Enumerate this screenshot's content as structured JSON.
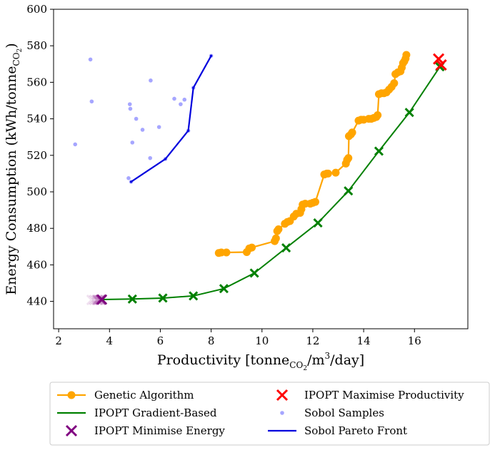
{
  "chart_data": {
    "type": "scatter",
    "xlabel": "Productivity [tonne_CO2/m^3/day]",
    "ylabel": "Energy Consumption (kWh/tonne_CO2)",
    "xlabel_parts": {
      "pre": "Productivity [tonne",
      "sub": "CO",
      "sub2": "2",
      "mid": "/m",
      "sup": "3",
      "post": "/day]"
    },
    "ylabel_parts": {
      "pre": "Energy Consumption (kWh/tonne",
      "sub": "CO",
      "sub2": "2",
      "post": ")"
    },
    "xlim": [
      1.8,
      18.1
    ],
    "ylim": [
      425,
      600
    ],
    "xticks": [
      2,
      4,
      6,
      8,
      10,
      12,
      14,
      16
    ],
    "yticks": [
      440,
      460,
      480,
      500,
      520,
      540,
      560,
      580,
      600
    ],
    "grid": false,
    "legend_position": "bottom-outside",
    "series": [
      {
        "name": "Genetic Algorithm",
        "kind": "line-marker",
        "color": "#FFA500",
        "points": [
          [
            8.3,
            466.5
          ],
          [
            8.4,
            466.8
          ],
          [
            8.6,
            466.8
          ],
          [
            9.4,
            467.0
          ],
          [
            9.5,
            469.0
          ],
          [
            9.6,
            469.5
          ],
          [
            10.5,
            473.0
          ],
          [
            10.55,
            474.5
          ],
          [
            10.6,
            478.5
          ],
          [
            10.65,
            479.5
          ],
          [
            10.9,
            482.5
          ],
          [
            11.0,
            483.5
          ],
          [
            11.1,
            484.0
          ],
          [
            11.25,
            486.5
          ],
          [
            11.35,
            488.0
          ],
          [
            11.5,
            488.5
          ],
          [
            11.55,
            490.5
          ],
          [
            11.6,
            493.0
          ],
          [
            11.7,
            493.5
          ],
          [
            11.9,
            493.5
          ],
          [
            12.0,
            494.0
          ],
          [
            12.1,
            494.5
          ],
          [
            12.45,
            509.5
          ],
          [
            12.55,
            510.0
          ],
          [
            12.6,
            510.0
          ],
          [
            12.9,
            510.5
          ],
          [
            13.3,
            515.5
          ],
          [
            13.35,
            517.5
          ],
          [
            13.4,
            518.5
          ],
          [
            13.42,
            530.5
          ],
          [
            13.5,
            531.5
          ],
          [
            13.55,
            532.5
          ],
          [
            13.8,
            539.0
          ],
          [
            13.9,
            539.5
          ],
          [
            14.0,
            539.5
          ],
          [
            14.2,
            540.0
          ],
          [
            14.3,
            540.0
          ],
          [
            14.4,
            540.5
          ],
          [
            14.5,
            541.0
          ],
          [
            14.55,
            542.0
          ],
          [
            14.6,
            553.5
          ],
          [
            14.7,
            554.0
          ],
          [
            14.8,
            554.0
          ],
          [
            14.9,
            554.5
          ],
          [
            15.0,
            556.0
          ],
          [
            15.1,
            557.5
          ],
          [
            15.2,
            559.5
          ],
          [
            15.25,
            564.5
          ],
          [
            15.35,
            565.5
          ],
          [
            15.45,
            566.0
          ],
          [
            15.5,
            568.0
          ],
          [
            15.55,
            570.5
          ],
          [
            15.6,
            571.5
          ],
          [
            15.65,
            573.0
          ],
          [
            15.68,
            575.0
          ]
        ]
      },
      {
        "name": "IPOPT Gradient-Based",
        "kind": "line-x",
        "color": "#008000",
        "points": [
          [
            3.7,
            441.0
          ],
          [
            4.9,
            441.3
          ],
          [
            6.1,
            441.8
          ],
          [
            7.3,
            443.0
          ],
          [
            8.5,
            447.0
          ],
          [
            9.7,
            455.5
          ],
          [
            10.95,
            469.3
          ],
          [
            12.2,
            483.0
          ],
          [
            13.4,
            500.5
          ],
          [
            14.6,
            522.3
          ],
          [
            15.8,
            543.5
          ],
          [
            17.0,
            568.5
          ]
        ]
      },
      {
        "name": "IPOPT Minimise Energy",
        "kind": "x",
        "color": "#800080",
        "points": [
          [
            3.3,
            440.8
          ],
          [
            3.4,
            440.8
          ],
          [
            3.5,
            440.8
          ],
          [
            3.55,
            440.8
          ],
          [
            3.65,
            440.9
          ],
          [
            3.7,
            441.0
          ]
        ],
        "alphas": [
          0.12,
          0.15,
          0.2,
          0.3,
          0.55,
          1.0
        ]
      },
      {
        "name": "IPOPT Maximise Productivity",
        "kind": "x",
        "color": "#FF0000",
        "points": [
          [
            16.95,
            572.8
          ],
          [
            17.05,
            569.5
          ]
        ]
      },
      {
        "name": "Sobol Samples",
        "kind": "dot",
        "color": "#6A6AFF",
        "points": [
          [
            2.65,
            526.0
          ],
          [
            3.25,
            572.5
          ],
          [
            3.3,
            549.5
          ],
          [
            4.75,
            507.5
          ],
          [
            4.8,
            548.0
          ],
          [
            4.82,
            545.5
          ],
          [
            4.85,
            505.5
          ],
          [
            4.9,
            527.0
          ],
          [
            5.05,
            540.0
          ],
          [
            5.3,
            534.0
          ],
          [
            5.6,
            518.5
          ],
          [
            5.62,
            561.0
          ],
          [
            5.95,
            535.5
          ],
          [
            6.2,
            518.0
          ],
          [
            6.55,
            551.0
          ],
          [
            6.8,
            548.0
          ],
          [
            6.95,
            550.5
          ],
          [
            7.1,
            533.5
          ],
          [
            7.3,
            557.0
          ],
          [
            8.0,
            574.5
          ]
        ]
      },
      {
        "name": "Sobol Pareto Front",
        "kind": "line",
        "color": "#0000DD",
        "points": [
          [
            4.85,
            505.5
          ],
          [
            6.2,
            518.0
          ],
          [
            7.1,
            533.5
          ],
          [
            7.3,
            557.0
          ],
          [
            8.0,
            574.5
          ]
        ]
      }
    ]
  },
  "legend": {
    "items": [
      {
        "label": "Genetic Algorithm",
        "marker": "line-marker",
        "color": "#FFA500"
      },
      {
        "label": "IPOPT Gradient-Based",
        "marker": "line",
        "color": "#008000"
      },
      {
        "label": "IPOPT Minimise Energy",
        "marker": "x",
        "color": "#800080"
      },
      {
        "label": "IPOPT Maximise Productivity",
        "marker": "x",
        "color": "#FF0000"
      },
      {
        "label": "Sobol Samples",
        "marker": "dot",
        "color": "#6A6AFF"
      },
      {
        "label": "Sobol Pareto Front",
        "marker": "line",
        "color": "#0000DD"
      }
    ]
  }
}
